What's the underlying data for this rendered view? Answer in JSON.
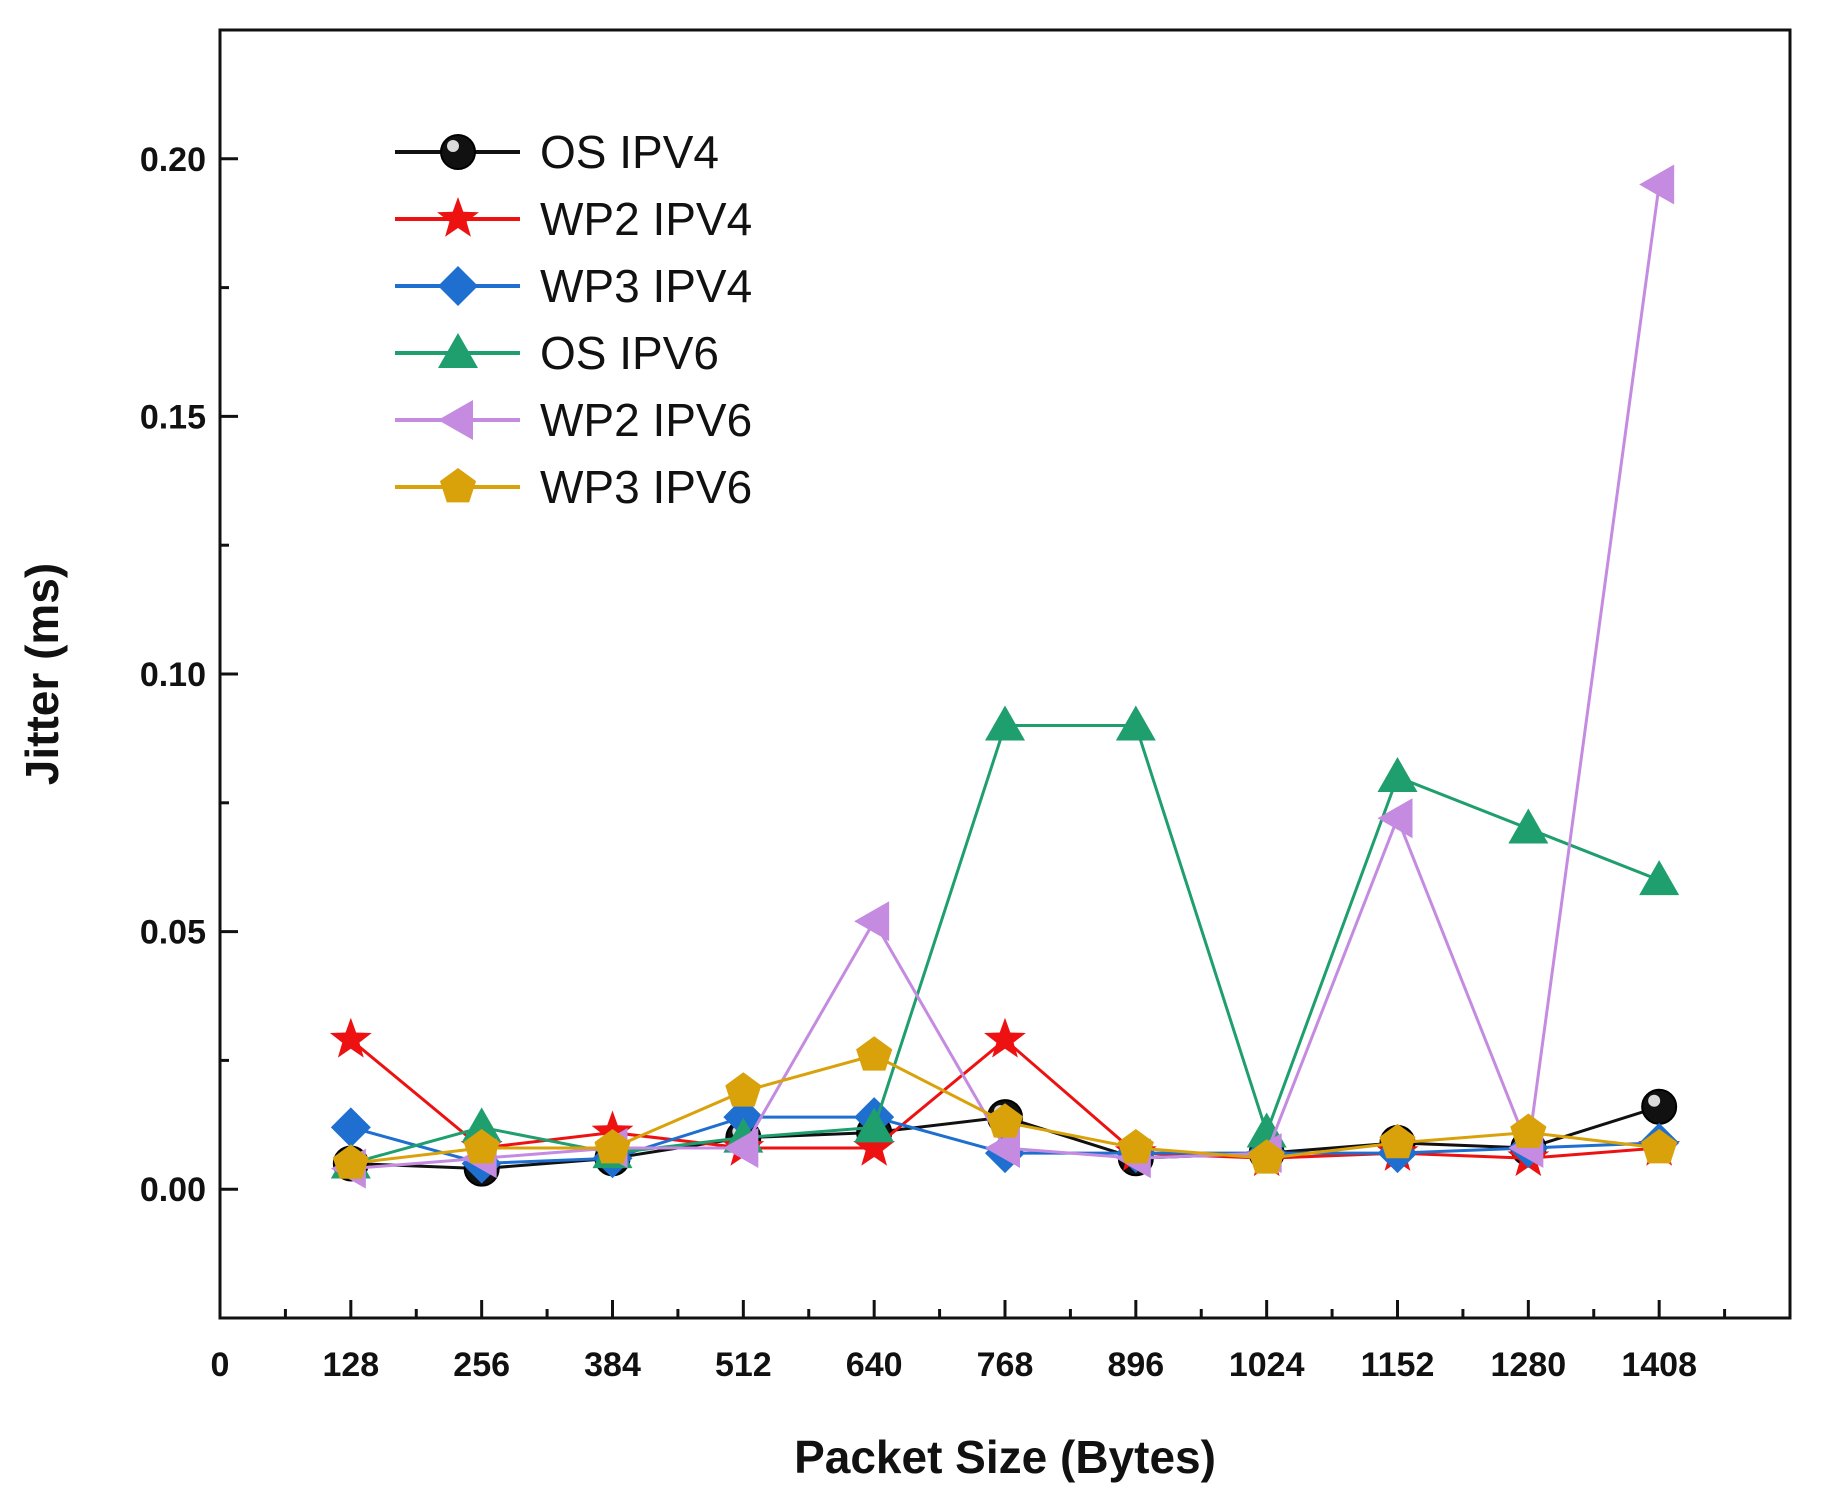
{
  "chart_data": {
    "type": "line",
    "title": "",
    "xlabel": "Packet Size (Bytes)",
    "ylabel": "Jitter (ms)",
    "xlim": [
      0,
      1536
    ],
    "ylim": [
      -0.025,
      0.225
    ],
    "x": [
      128,
      256,
      384,
      512,
      640,
      768,
      896,
      1024,
      1152,
      1280,
      1408
    ],
    "xticks": [
      "0",
      "128",
      "256",
      "384",
      "512",
      "640",
      "768",
      "896",
      "1024",
      "1152",
      "1280",
      "1408"
    ],
    "xtick_values": [
      0,
      128,
      256,
      384,
      512,
      640,
      768,
      896,
      1024,
      1152,
      1280,
      1408
    ],
    "yticks": [
      "0.00",
      "0.05",
      "0.10",
      "0.15",
      "0.20"
    ],
    "ytick_values": [
      0,
      0.05,
      0.1,
      0.15,
      0.2
    ],
    "grid": false,
    "legend_position": "top-left",
    "series": [
      {
        "name": "OS IPV4",
        "color": "#111111",
        "marker": "circle",
        "values": [
          0.005,
          0.004,
          0.006,
          0.01,
          0.011,
          0.014,
          0.006,
          0.007,
          0.009,
          0.008,
          0.016
        ]
      },
      {
        "name": "WP2 IPV4",
        "color": "#ee1111",
        "marker": "star",
        "values": [
          0.029,
          0.008,
          0.011,
          0.008,
          0.008,
          0.029,
          0.007,
          0.006,
          0.007,
          0.006,
          0.008
        ]
      },
      {
        "name": "WP3 IPV4",
        "color": "#1e6fd0",
        "marker": "diamond",
        "values": [
          0.012,
          0.005,
          0.006,
          0.014,
          0.014,
          0.007,
          0.007,
          0.007,
          0.007,
          0.008,
          0.009
        ]
      },
      {
        "name": "OS IPV6",
        "color": "#1f9e6e",
        "marker": "triangle-up",
        "values": [
          0.005,
          0.012,
          0.007,
          0.01,
          0.012,
          0.09,
          0.09,
          0.011,
          0.08,
          0.07,
          0.06
        ]
      },
      {
        "name": "WP2 IPV6",
        "color": "#c48be0",
        "marker": "triangle-left",
        "values": [
          0.004,
          0.006,
          0.008,
          0.008,
          0.052,
          0.008,
          0.006,
          0.007,
          0.072,
          0.008,
          0.195
        ]
      },
      {
        "name": "WP3 IPV6",
        "color": "#d9a20a",
        "marker": "pentagon",
        "values": [
          0.005,
          0.008,
          0.008,
          0.019,
          0.026,
          0.013,
          0.008,
          0.006,
          0.009,
          0.011,
          0.008
        ]
      }
    ]
  }
}
